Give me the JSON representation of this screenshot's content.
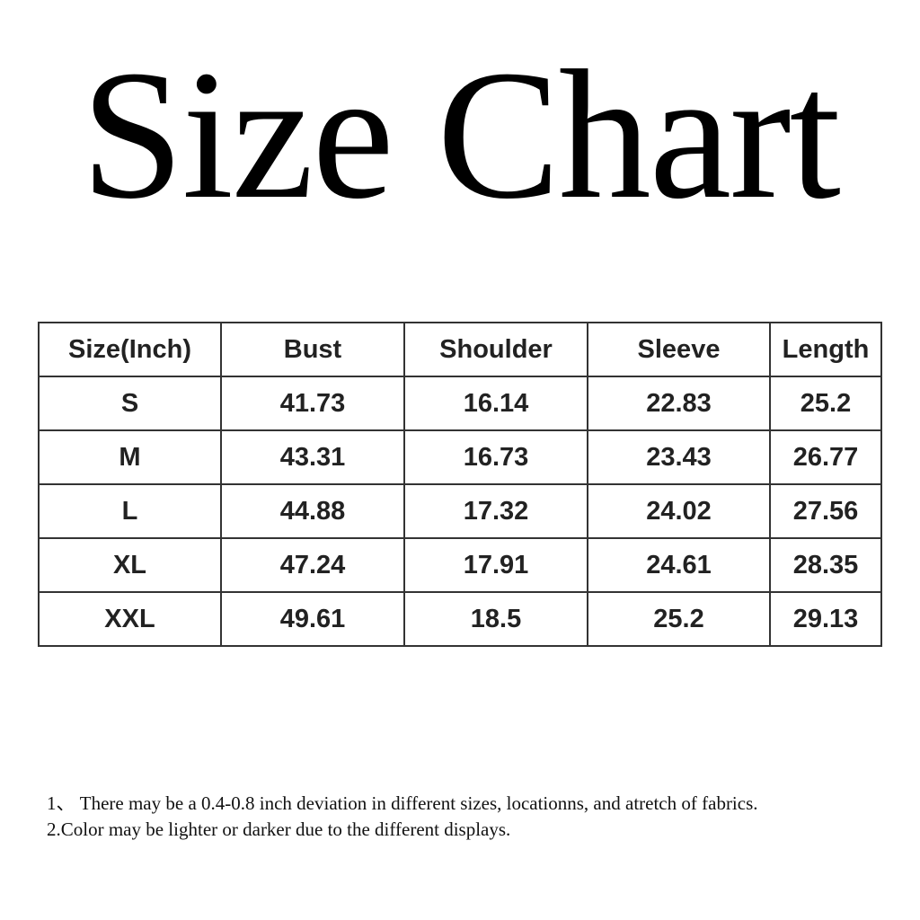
{
  "title": "Size Chart",
  "table": {
    "headers": [
      "Size(Inch)",
      "Bust",
      "Shoulder",
      "Sleeve",
      "Length"
    ],
    "rows": [
      [
        "S",
        "41.73",
        "16.14",
        "22.83",
        "25.2"
      ],
      [
        "M",
        "43.31",
        "16.73",
        "23.43",
        "26.77"
      ],
      [
        "L",
        "44.88",
        "17.32",
        "24.02",
        "27.56"
      ],
      [
        "XL",
        "47.24",
        "17.91",
        "24.61",
        "28.35"
      ],
      [
        "XXL",
        "49.61",
        "18.5",
        "25.2",
        "29.13"
      ]
    ]
  },
  "notes": [
    "1、 There may be a 0.4-0.8 inch deviation in different sizes, locationns, and atretch of fabrics.",
    "2.Color may be lighter or darker due to the different displays."
  ]
}
